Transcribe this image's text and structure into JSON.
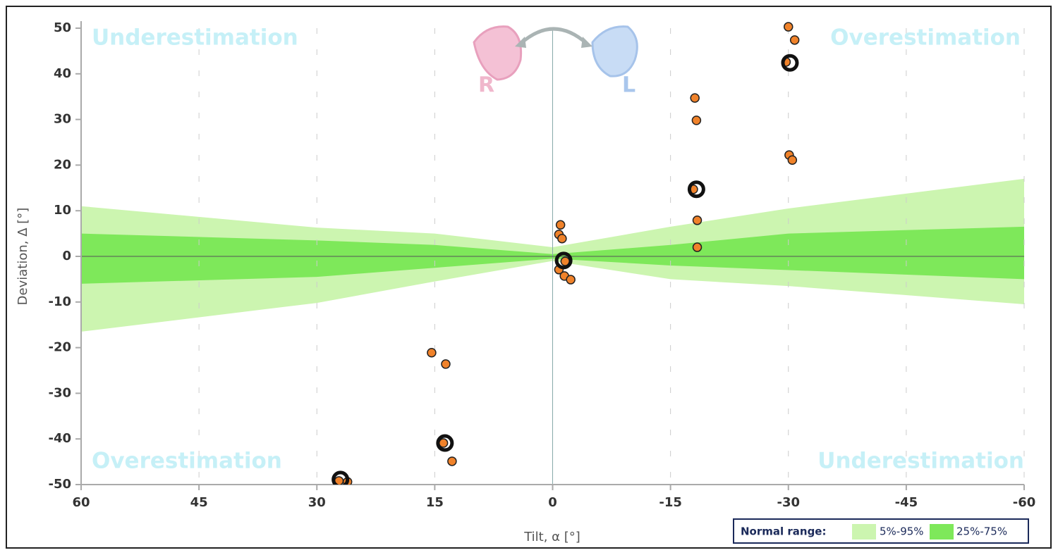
{
  "chart_data": {
    "type": "scatter",
    "xlabel": "Tilt, α [°]",
    "ylabel": "Deviation, Δ [°]",
    "xlim": [
      60,
      -60
    ],
    "ylim": [
      -50,
      50
    ],
    "xticks": [
      60,
      45,
      30,
      15,
      0,
      -15,
      -30,
      -45,
      -60
    ],
    "yticks": [
      50,
      40,
      30,
      20,
      10,
      0,
      -10,
      -20,
      -30,
      -40,
      -50
    ],
    "grid": true,
    "annotations": [
      "Underestimation",
      "Overestimation",
      "Overestimation",
      "Underestimation"
    ],
    "icon_labels": [
      "R",
      "L"
    ],
    "legend_title": "Normal range:",
    "bands": [
      {
        "name": "5%-95%",
        "color": "#ccf5b0",
        "x": [
          60,
          30,
          15,
          0,
          -15,
          -30,
          -60
        ],
        "lower": [
          -16.5,
          -10.2,
          -5.5,
          -1,
          -5,
          -6.5,
          -10.5
        ],
        "upper": [
          11,
          6.3,
          5,
          2,
          6.5,
          10.5,
          17
        ]
      },
      {
        "name": "25%-75%",
        "color": "#7ee85a",
        "x": [
          60,
          30,
          15,
          0,
          -15,
          -30,
          -60
        ],
        "lower": [
          -6,
          -4.5,
          -2.5,
          -0.5,
          -2,
          -3,
          -5
        ],
        "upper": [
          5,
          3.5,
          2.5,
          0.5,
          2.5,
          5,
          6.5
        ]
      }
    ],
    "series": [
      {
        "color": "#f0822a",
        "marker": "dot",
        "x": [
          15.4,
          13.6,
          13.9,
          12.8,
          27.2,
          26.1,
          -1.0,
          -0.8,
          -1.2,
          -0.8,
          -1.6,
          -1.5,
          -2.3,
          -18.1,
          -18.3,
          -17.9,
          -18.4,
          -18.4,
          -30.0,
          -30.8,
          -29.7,
          -30.1,
          -30.5
        ],
        "values": [
          -21.1,
          -23.6,
          -40.9,
          -44.9,
          -49.2,
          -49.4,
          6.9,
          4.8,
          3.9,
          -2.9,
          -1.1,
          -4.3,
          -5.1,
          34.7,
          29.8,
          14.7,
          7.9,
          2.0,
          50.3,
          47.4,
          42.6,
          22.2,
          21.1
        ]
      },
      {
        "color": "#111111",
        "marker": "ring",
        "x": [
          27.0,
          13.7,
          -1.4,
          -18.3,
          -30.2
        ],
        "values": [
          -48.9,
          -40.9,
          -0.9,
          14.7,
          42.4
        ]
      }
    ]
  }
}
